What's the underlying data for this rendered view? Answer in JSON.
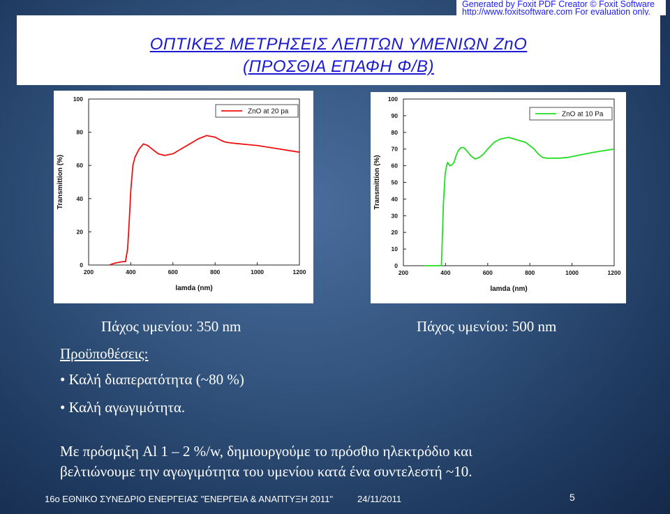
{
  "watermark": {
    "line1": "Generated by Foxit PDF Creator © Foxit Software",
    "line2": "http://www.foxitsoftware.com   For evaluation only."
  },
  "title": {
    "line1": "ΟΠΤΙΚΕΣ  ΜΕΤΡΗΣΕΙΣ  ΛΕΠΤΩΝ  ΥΜΕΝΙΩΝ  ZnO",
    "line2": "(ΠΡΟΣΘΙΑ ΕΠΑΦΗ Φ/Β)"
  },
  "captions": {
    "left": "Πάχος υμενίου:  350 nm",
    "right": "Πάχος υμενίου:  500 nm"
  },
  "conditions": {
    "heading": "Προϋποθέσεις:",
    "items": [
      "• Καλή διαπερατότητα (~80 %)",
      "• Καλή αγωγιμότητα."
    ]
  },
  "paragraph": {
    "line1": "Με  πρόσμιξη    Al  1  –  2  %/w,  δημιουργούμε  το  πρόσθιο  ηλεκτρόδιο  και",
    "line2": "βελτιώνουμε την αγωγιμότητα του υμενίου κατά ένα συντελεστή  ~10."
  },
  "footer": {
    "conference": "16ο ΕΘΝΙΚΟ ΣΥΝΕΔΡΙΟ ΕΝΕΡΓΕΙΑΣ \"ΕΝΕΡΓΕΙΑ & ΑΝΑΠΤΥΞΗ 2011\"",
    "date": "24/11/2011",
    "page": "5"
  },
  "chart_data": [
    {
      "type": "line",
      "xlabel": "lamda (nm)",
      "ylabel": "Transmittion (%)",
      "xlim": [
        200,
        1200
      ],
      "ylim": [
        0,
        100
      ],
      "xticks": [
        "200",
        "400",
        "600",
        "800",
        "1000",
        "1200"
      ],
      "yticks": [
        "0",
        "20",
        "40",
        "60",
        "80",
        "100"
      ],
      "color": "#ee1111",
      "series": [
        {
          "name": "ZnO at 20 pa",
          "x": [
            300,
            320,
            340,
            360,
            375,
            385,
            392,
            400,
            410,
            420,
            440,
            460,
            480,
            500,
            530,
            560,
            600,
            640,
            680,
            720,
            760,
            800,
            830,
            850,
            880,
            920,
            960,
            1000,
            1050,
            1100,
            1150,
            1200
          ],
          "y": [
            0,
            1,
            1.5,
            2,
            2,
            10,
            25,
            45,
            60,
            65,
            70,
            73,
            72,
            70,
            67,
            66,
            67,
            70,
            73,
            76,
            78,
            77,
            75,
            74,
            73.5,
            73,
            72.5,
            72,
            71,
            70,
            69,
            68
          ]
        }
      ]
    },
    {
      "type": "line",
      "xlabel": "lamda (nm)",
      "ylabel": "Transmittion (%)",
      "xlim": [
        200,
        1200
      ],
      "ylim": [
        0,
        100
      ],
      "xticks": [
        "200",
        "400",
        "600",
        "800",
        "1000",
        "1200"
      ],
      "yticks": [
        "0",
        "10",
        "20",
        "30",
        "40",
        "50",
        "60",
        "70",
        "80",
        "90",
        "100"
      ],
      "color": "#22dd22",
      "series": [
        {
          "name": "ZnO at 10 Pa",
          "x": [
            300,
            340,
            380,
            382,
            385,
            390,
            398,
            405,
            410,
            420,
            430,
            440,
            450,
            460,
            470,
            480,
            490,
            500,
            520,
            540,
            560,
            580,
            600,
            630,
            660,
            700,
            740,
            780,
            800,
            820,
            840,
            860,
            880,
            900,
            940,
            980,
            1020,
            1060,
            1100,
            1150,
            1200
          ],
          "y": [
            0,
            0,
            0,
            6,
            18,
            38,
            55,
            60,
            62,
            60,
            60.5,
            62,
            66,
            69,
            70.5,
            71,
            70.5,
            69,
            66,
            64,
            65,
            67,
            70,
            74,
            76,
            77,
            75.5,
            74,
            72,
            70,
            67,
            65,
            64.5,
            64.5,
            64.5,
            65,
            66,
            67,
            68,
            69,
            70
          ]
        }
      ]
    }
  ]
}
